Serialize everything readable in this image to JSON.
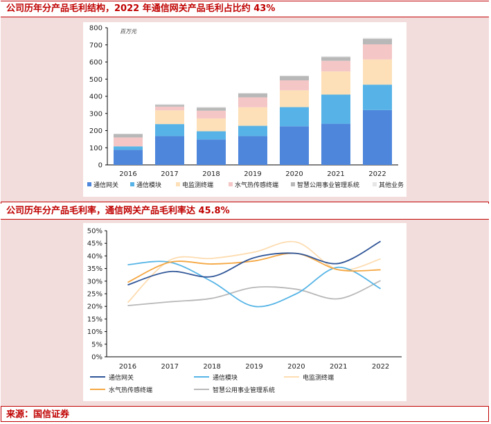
{
  "charts": {
    "top": {
      "heading": "公司历年分产品毛利结构，2022 年通信网关产品毛利占比约 43%",
      "unit_label": "百万元"
    },
    "bottom": {
      "heading": "公司历年分产品毛利率，通信网关产品毛利率达 45.8%"
    }
  },
  "source": "来源：国信证券",
  "chart_data": [
    {
      "type": "bar",
      "stacked": true,
      "title": "公司历年分产品毛利结构，2022 年通信网关产品毛利占比约 43%",
      "unit": "百万元",
      "categories": [
        "2016",
        "2017",
        "2018",
        "2019",
        "2020",
        "2021",
        "2022"
      ],
      "ylim": [
        0,
        800
      ],
      "yticks": [
        0,
        100,
        200,
        300,
        400,
        500,
        600,
        700,
        800
      ],
      "legend_position": "bottom",
      "grid": false,
      "series": [
        {
          "name": "通信网关",
          "color": "#4e86dc",
          "values": [
            88,
            168,
            148,
            168,
            225,
            240,
            320
          ]
        },
        {
          "name": "通信模块",
          "color": "#57b3e7",
          "values": [
            20,
            70,
            48,
            60,
            112,
            170,
            148
          ]
        },
        {
          "name": "电监测终端",
          "color": "#fde0b8",
          "values": [
            0,
            80,
            75,
            108,
            98,
            135,
            147
          ]
        },
        {
          "name": "水气热传感终端",
          "color": "#f5c6c6",
          "values": [
            52,
            22,
            45,
            58,
            58,
            62,
            88
          ]
        },
        {
          "name": "智慧公用事业管理系统",
          "color": "#b8b8b8",
          "values": [
            20,
            10,
            18,
            22,
            25,
            22,
            32
          ]
        },
        {
          "name": "其他业务",
          "color": "#e6e6e6",
          "values": [
            2,
            5,
            4,
            4,
            4,
            5,
            6
          ]
        }
      ]
    },
    {
      "type": "line",
      "smooth": true,
      "title": "公司历年分产品毛利率，通信网关产品毛利率达 45.8%",
      "x": [
        "2016",
        "2017",
        "2018",
        "2019",
        "2020",
        "2021",
        "2022"
      ],
      "ylim": [
        0,
        50
      ],
      "yticks": [
        "0%",
        "5%",
        "10%",
        "15%",
        "20%",
        "25%",
        "30%",
        "35%",
        "40%",
        "45%",
        "50%"
      ],
      "legend_position": "bottom",
      "grid": false,
      "series": [
        {
          "name": "通信网关",
          "color": "#2f5597",
          "values": [
            28.5,
            33.8,
            31.8,
            39.3,
            41.0,
            37.0,
            45.8
          ]
        },
        {
          "name": "通信模块",
          "color": "#55b4e6",
          "values": [
            36.5,
            37.5,
            29.8,
            20.0,
            25.0,
            35.5,
            27.0
          ]
        },
        {
          "name": "电监测终端",
          "color": "#fddcb0",
          "values": [
            21.5,
            38.3,
            39.0,
            41.5,
            45.5,
            34.5,
            38.8
          ]
        },
        {
          "name": "水气热传感终端",
          "color": "#f5a742",
          "values": [
            29.5,
            37.5,
            36.8,
            38.0,
            41.0,
            34.5,
            34.5
          ]
        },
        {
          "name": "智慧公用事业管理系统",
          "color": "#b8b8b8",
          "values": [
            20.3,
            21.8,
            23.2,
            27.5,
            26.8,
            23.0,
            30.2
          ]
        }
      ]
    }
  ]
}
